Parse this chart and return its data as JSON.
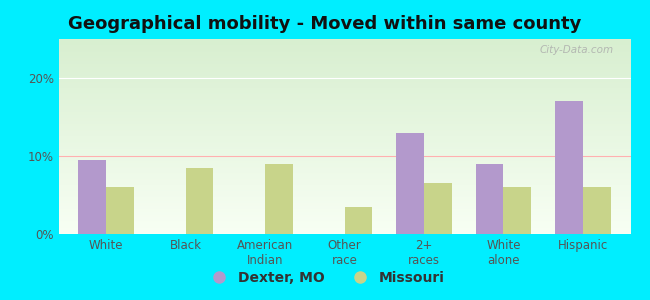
{
  "title": "Geographical mobility - Moved within same county",
  "categories": [
    "White",
    "Black",
    "American\nIndian",
    "Other\nrace",
    "2+\nraces",
    "White\nalone",
    "Hispanic"
  ],
  "dexter_values": [
    9.5,
    0,
    0,
    0,
    13.0,
    9.0,
    17.0
  ],
  "missouri_values": [
    6.0,
    8.5,
    9.0,
    3.5,
    6.5,
    6.0,
    6.0
  ],
  "dexter_color": "#b399cc",
  "missouri_color": "#c8d48a",
  "background_outer": "#00eeff",
  "yticks": [
    0,
    10,
    20
  ],
  "ylim": [
    0,
    25
  ],
  "legend_labels": [
    "Dexter, MO",
    "Missouri"
  ],
  "bar_width": 0.35,
  "title_fontsize": 13,
  "tick_fontsize": 8.5,
  "legend_fontsize": 10,
  "watermark": "City-Data.com",
  "plot_bg_top": "#d8efd0",
  "plot_bg_bottom": "#f8fff4",
  "grid_color": "#ffffff",
  "tick_color": "#555555"
}
